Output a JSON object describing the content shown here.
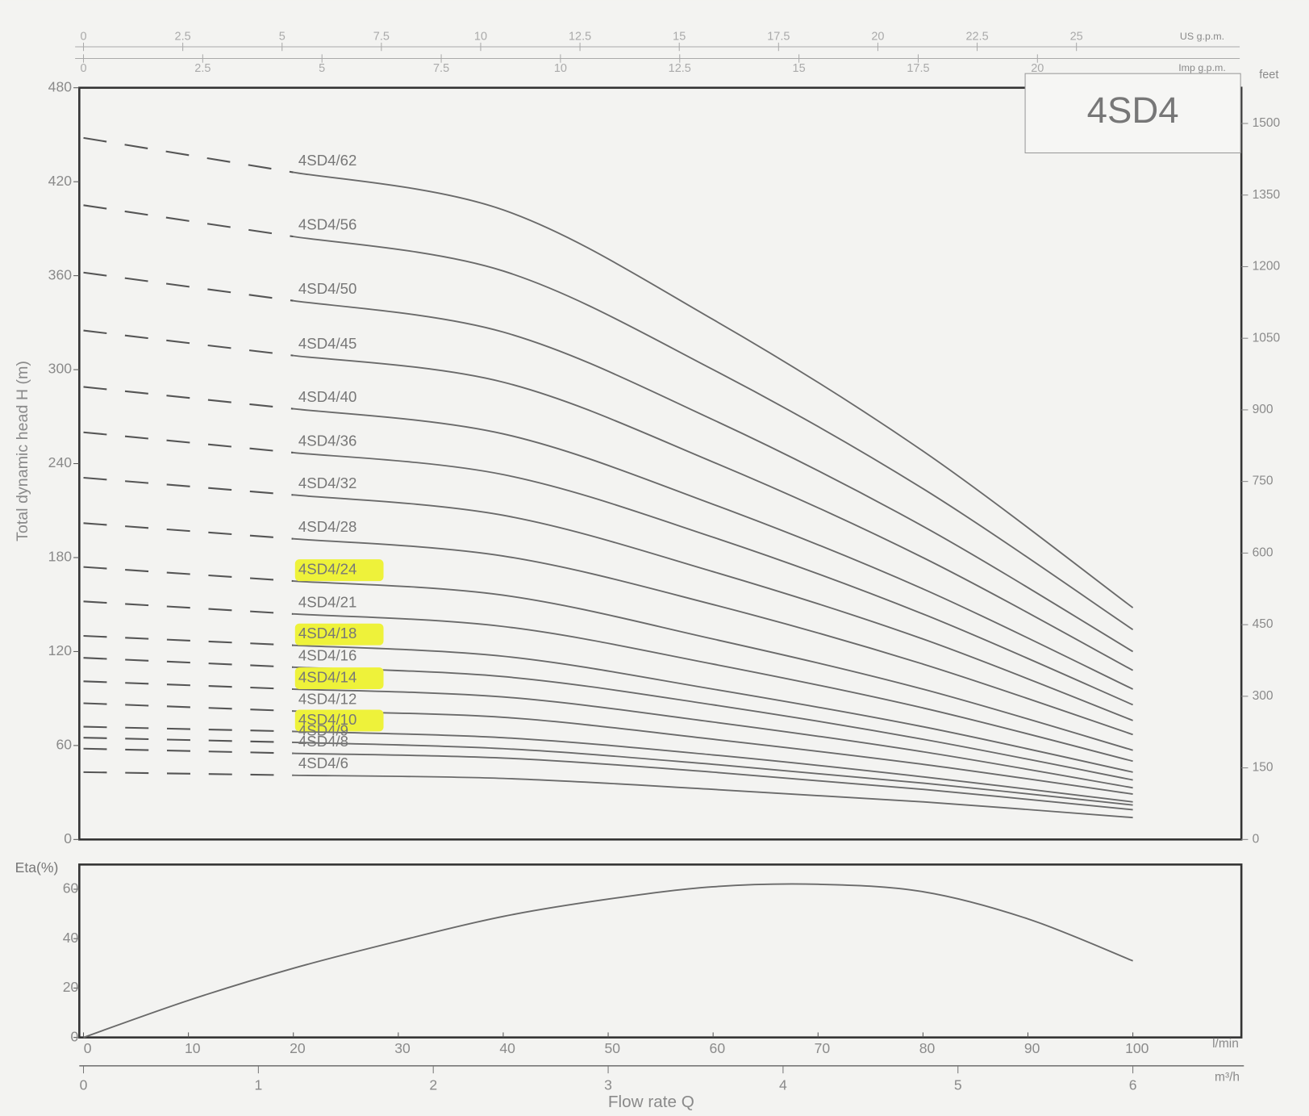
{
  "chart_data": [
    {
      "type": "line",
      "title": "4SD4",
      "y_label": "Total dynamic head H (m)",
      "ylim": [
        0,
        480
      ],
      "yticks": [
        0,
        60,
        120,
        180,
        240,
        300,
        360,
        420,
        480
      ],
      "y2_label": "feet",
      "y2lim": [
        0,
        1574.8
      ],
      "y2ticks": [
        0,
        150,
        300,
        450,
        600,
        750,
        900,
        1050,
        1200,
        1350,
        1500
      ],
      "xlim": [
        0,
        100
      ],
      "x": [
        0,
        20,
        40,
        60,
        80,
        100
      ],
      "dashed_xlim": [
        0,
        20
      ],
      "top_axes": [
        {
          "label": "US g.p.m.",
          "lim": [
            0,
            26.42
          ],
          "ticks": [
            0,
            2.5,
            5,
            7.5,
            10,
            12.5,
            15,
            17.5,
            20,
            22.5,
            25
          ]
        },
        {
          "label": "Imp g.p.m.",
          "lim": [
            0,
            22
          ],
          "ticks": [
            0,
            2.5,
            5,
            7.5,
            10,
            12.5,
            15,
            17.5,
            20
          ]
        }
      ],
      "color": "#6a6a6a",
      "highlight_color": "#eef23a",
      "series": [
        {
          "name": "4SD4/62",
          "values": [
            448,
            426,
            402,
            332,
            248,
            148
          ]
        },
        {
          "name": "4SD4/56",
          "values": [
            405,
            385,
            363,
            300,
            224,
            134
          ]
        },
        {
          "name": "4SD4/50",
          "values": [
            362,
            344,
            324,
            268,
            200,
            120
          ]
        },
        {
          "name": "4SD4/45",
          "values": [
            325,
            309,
            292,
            241,
            180,
            108
          ]
        },
        {
          "name": "4SD4/40",
          "values": [
            289,
            275,
            259,
            214,
            160,
            96
          ]
        },
        {
          "name": "4SD4/36",
          "values": [
            260,
            247,
            233,
            193,
            144,
            86
          ]
        },
        {
          "name": "4SD4/32",
          "values": [
            231,
            220,
            207,
            171,
            128,
            76
          ]
        },
        {
          "name": "4SD4/28",
          "values": [
            202,
            192,
            181,
            150,
            112,
            67
          ]
        },
        {
          "name": "4SD4/24",
          "values": [
            174,
            165,
            156,
            128,
            96,
            57
          ],
          "highlight": true
        },
        {
          "name": "4SD4/21",
          "values": [
            152,
            144,
            136,
            112,
            84,
            50
          ]
        },
        {
          "name": "4SD4/18",
          "values": [
            130,
            124,
            117,
            96,
            72,
            43
          ],
          "highlight": true
        },
        {
          "name": "4SD4/16",
          "values": [
            116,
            110,
            104,
            86,
            64,
            38
          ]
        },
        {
          "name": "4SD4/14",
          "values": [
            101,
            96,
            91,
            75,
            56,
            33
          ],
          "highlight": true
        },
        {
          "name": "4SD4/12",
          "values": [
            87,
            82,
            78,
            64,
            48,
            29
          ]
        },
        {
          "name": "4SD4/10",
          "values": [
            72,
            69,
            65,
            54,
            40,
            24
          ],
          "highlight": true
        },
        {
          "name": "4SD4/9",
          "values": [
            65,
            62,
            58,
            48,
            36,
            22
          ]
        },
        {
          "name": "4SD4/8",
          "values": [
            58,
            55,
            52,
            43,
            32,
            19
          ]
        },
        {
          "name": "4SD4/6",
          "values": [
            43,
            41,
            39,
            32,
            24,
            14
          ]
        }
      ]
    },
    {
      "type": "line",
      "y_label": "Eta(%)",
      "ylim": [
        0,
        70
      ],
      "yticks": [
        0,
        20,
        40,
        60
      ],
      "xlim": [
        0,
        100
      ],
      "x": [
        0,
        10,
        20,
        30,
        40,
        50,
        60,
        70,
        80,
        90,
        100
      ],
      "values": [
        0,
        15,
        28,
        39,
        49,
        56,
        61,
        62,
        59,
        48,
        31
      ],
      "color": "#6a6a6a",
      "x_label": "Flow rate Q",
      "x_unit": "l/min",
      "xticks": [
        0,
        10,
        20,
        30,
        40,
        50,
        60,
        70,
        80,
        90,
        100
      ],
      "x2": {
        "label": "m³/h",
        "lim": [
          0,
          6
        ],
        "ticks": [
          0,
          1,
          2,
          3,
          4,
          5,
          6
        ]
      }
    }
  ]
}
